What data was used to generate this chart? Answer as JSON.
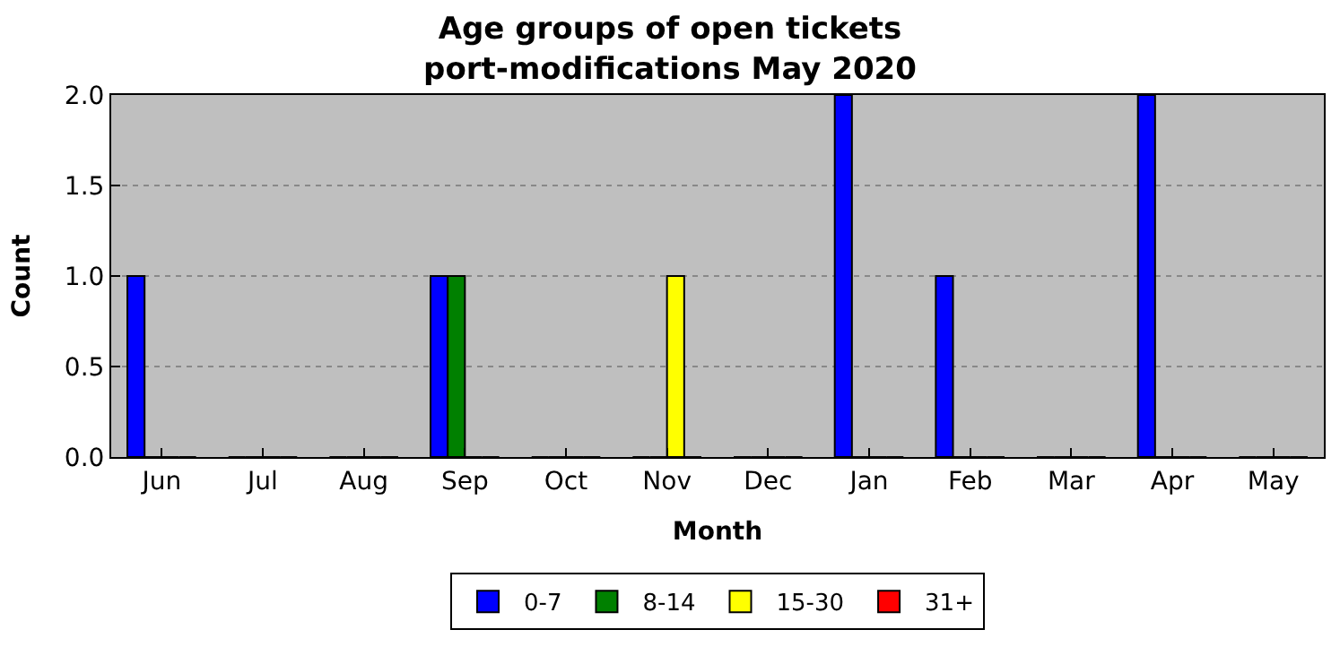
{
  "chart_data": {
    "type": "bar",
    "title": "Age groups of open tickets\nport-modifications May 2020",
    "xlabel": "Month",
    "ylabel": "Count",
    "categories": [
      "Jun",
      "Jul",
      "Aug",
      "Sep",
      "Oct",
      "Nov",
      "Dec",
      "Jan",
      "Feb",
      "Mar",
      "Apr",
      "May"
    ],
    "series": [
      {
        "name": "0-7",
        "color": "#0000ff",
        "values": [
          1,
          0,
          0,
          1,
          0,
          0,
          0,
          2,
          1,
          0,
          2,
          0
        ]
      },
      {
        "name": "8-14",
        "color": "#008000",
        "values": [
          0,
          0,
          0,
          1,
          0,
          0,
          0,
          0,
          0,
          0,
          0,
          0
        ]
      },
      {
        "name": "15-30",
        "color": "#ffff00",
        "values": [
          0,
          0,
          0,
          0,
          0,
          1,
          0,
          0,
          0,
          0,
          0,
          0
        ]
      },
      {
        "name": "31+",
        "color": "#ff0000",
        "values": [
          0,
          0,
          0,
          0,
          0,
          0,
          0,
          0,
          0,
          0,
          0,
          0
        ]
      }
    ],
    "ylim": [
      0,
      2.0
    ],
    "yticks": [
      {
        "value": 0,
        "label": "0.0"
      },
      {
        "value": 0.5,
        "label": "0.5"
      },
      {
        "value": 1,
        "label": "1.0"
      },
      {
        "value": 1.5,
        "label": "1.5"
      },
      {
        "value": 2,
        "label": "2.0"
      }
    ],
    "grid": "y",
    "legend": "bottom"
  }
}
